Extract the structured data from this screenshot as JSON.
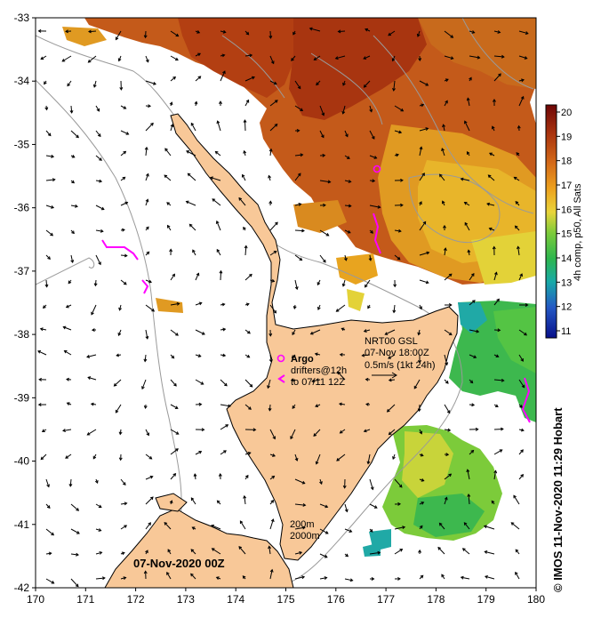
{
  "map": {
    "x_ticks": [
      "170",
      "171",
      "172",
      "173",
      "174",
      "175",
      "176",
      "177",
      "178",
      "179",
      "180"
    ],
    "y_ticks": [
      "-33",
      "-34",
      "-35",
      "-36",
      "-37",
      "-38",
      "-39",
      "-40",
      "-41",
      "-42"
    ],
    "date_label": "07-Nov-2020 00Z",
    "depth_200": "200m",
    "depth_2000": "2000m"
  },
  "legend": {
    "argo": "Argo",
    "drifters_line1": "drifters@12h",
    "drifters_line2": "to 07/11 12Z",
    "nrt_line1": "NRT00 GSL",
    "nrt_line2": "07-Nov 18:00Z",
    "nrt_line3": "0.5m/s (1kt 24h)"
  },
  "colorbar": {
    "title": "4h comp, p50, All Sats",
    "ticks": [
      "20",
      "19",
      "18",
      "17",
      "16",
      "15",
      "14",
      "13",
      "12",
      "11"
    ],
    "colors": [
      "#7a0a0a",
      "#b23a10",
      "#d8701a",
      "#efa81f",
      "#e8d33a",
      "#8ccd3a",
      "#2fb54a",
      "#19a7a4",
      "#2a5ec6",
      "#0a1490"
    ]
  },
  "credit": "© IMOS 11-Nov-2020 11:29 Hobart",
  "colors": {
    "land": "#f8c898",
    "argo": "#ff00ff",
    "contour": "#9a9a9a"
  }
}
